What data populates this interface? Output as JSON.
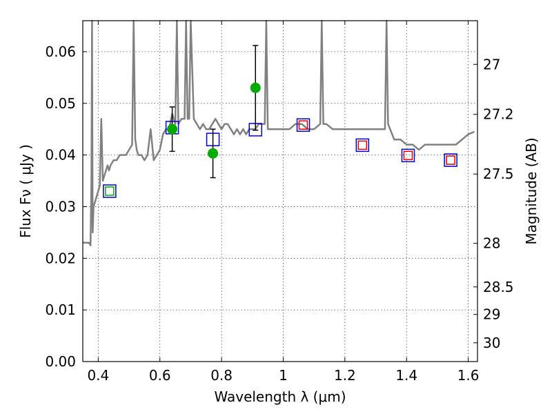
{
  "chart_data": {
    "type": "scatter",
    "xlabel": "Wavelength  λ (μm)",
    "ylabel": "Flux  Fν  ( μJy )",
    "y2label": "Magnitude (AB)",
    "xlim": [
      0.35,
      1.63
    ],
    "ylim": [
      0.0,
      0.066
    ],
    "x_ticks": [
      {
        "v": 0.4,
        "label": "0.4"
      },
      {
        "v": 0.6,
        "label": "0.6"
      },
      {
        "v": 0.8,
        "label": "0.8"
      },
      {
        "v": 1.0,
        "label": "1"
      },
      {
        "v": 1.2,
        "label": "1.2"
      },
      {
        "v": 1.4,
        "label": "1.4"
      },
      {
        "v": 1.6,
        "label": "1.6"
      }
    ],
    "y_ticks": [
      {
        "v": 0.0,
        "label": "0.00"
      },
      {
        "v": 0.01,
        "label": "0.01"
      },
      {
        "v": 0.02,
        "label": "0.02"
      },
      {
        "v": 0.03,
        "label": "0.03"
      },
      {
        "v": 0.04,
        "label": "0.04"
      },
      {
        "v": 0.05,
        "label": "0.05"
      },
      {
        "v": 0.06,
        "label": "0.06"
      }
    ],
    "y2_ticks": [
      {
        "mag": 27,
        "label": "27"
      },
      {
        "mag": 27.2,
        "label": "27.2"
      },
      {
        "mag": 27.5,
        "label": "27.5"
      },
      {
        "mag": 28,
        "label": "28"
      },
      {
        "mag": 28.5,
        "label": "28.5"
      },
      {
        "mag": 29,
        "label": "29"
      },
      {
        "mag": 30,
        "label": "30"
      }
    ],
    "grid": true,
    "colors": {
      "spectrum": "#808080",
      "observed": "#00aa00",
      "model_box": "#0000cc",
      "upper_box_red": "#dd0000",
      "upper_box_green": "#00aa00",
      "errorbar": "#000000"
    },
    "series": [
      {
        "kind": "spectrum",
        "x": [
          0.35,
          0.37,
          0.375,
          0.378,
          0.38,
          0.382,
          0.385,
          0.39,
          0.395,
          0.4,
          0.405,
          0.41,
          0.415,
          0.42,
          0.425,
          0.43,
          0.435,
          0.44,
          0.45,
          0.46,
          0.47,
          0.48,
          0.49,
          0.5,
          0.51,
          0.515,
          0.52,
          0.525,
          0.53,
          0.54,
          0.55,
          0.56,
          0.57,
          0.58,
          0.59,
          0.6,
          0.61,
          0.62,
          0.63,
          0.64,
          0.65,
          0.655,
          0.66,
          0.67,
          0.68,
          0.685,
          0.69,
          0.695,
          0.7,
          0.71,
          0.72,
          0.73,
          0.74,
          0.75,
          0.76,
          0.77,
          0.78,
          0.79,
          0.8,
          0.81,
          0.82,
          0.83,
          0.84,
          0.85,
          0.86,
          0.87,
          0.88,
          0.89,
          0.9,
          0.91,
          0.92,
          0.93,
          0.94,
          0.945,
          0.95,
          0.96,
          0.98,
          1.0,
          1.02,
          1.04,
          1.06,
          1.08,
          1.1,
          1.12,
          1.125,
          1.13,
          1.14,
          1.16,
          1.18,
          1.2,
          1.22,
          1.24,
          1.26,
          1.28,
          1.3,
          1.32,
          1.33,
          1.335,
          1.34,
          1.36,
          1.38,
          1.4,
          1.42,
          1.44,
          1.46,
          1.48,
          1.5,
          1.52,
          1.54,
          1.56,
          1.58,
          1.6,
          1.62
        ],
        "y": [
          0.023,
          0.023,
          0.0225,
          0.035,
          0.066,
          0.025,
          0.03,
          0.031,
          0.032,
          0.033,
          0.034,
          0.047,
          0.035,
          0.036,
          0.037,
          0.038,
          0.037,
          0.038,
          0.039,
          0.039,
          0.04,
          0.04,
          0.04,
          0.041,
          0.042,
          0.066,
          0.043,
          0.041,
          0.04,
          0.04,
          0.039,
          0.04,
          0.045,
          0.039,
          0.04,
          0.041,
          0.044,
          0.045,
          0.045,
          0.048,
          0.046,
          0.066,
          0.046,
          0.047,
          0.047,
          0.066,
          0.047,
          0.047,
          0.066,
          0.047,
          0.046,
          0.045,
          0.046,
          0.045,
          0.045,
          0.046,
          0.047,
          0.046,
          0.045,
          0.046,
          0.046,
          0.045,
          0.044,
          0.045,
          0.044,
          0.045,
          0.044,
          0.045,
          0.045,
          0.045,
          0.046,
          0.046,
          0.046,
          0.066,
          0.045,
          0.045,
          0.045,
          0.045,
          0.045,
          0.046,
          0.046,
          0.045,
          0.045,
          0.046,
          0.066,
          0.046,
          0.046,
          0.045,
          0.045,
          0.045,
          0.045,
          0.045,
          0.045,
          0.045,
          0.045,
          0.045,
          0.045,
          0.066,
          0.046,
          0.043,
          0.043,
          0.042,
          0.042,
          0.041,
          0.042,
          0.042,
          0.042,
          0.042,
          0.042,
          0.042,
          0.043,
          0.044,
          0.0445
        ]
      },
      {
        "kind": "observed",
        "points": [
          {
            "x": 0.64,
            "y": 0.045,
            "err": 0.0043
          },
          {
            "x": 0.772,
            "y": 0.0403,
            "err": 0.0047
          },
          {
            "x": 0.91,
            "y": 0.053,
            "err": 0.0082
          }
        ]
      },
      {
        "kind": "model_boxes",
        "points": [
          {
            "x": 0.437,
            "y": 0.033,
            "inner": "green"
          },
          {
            "x": 0.64,
            "y": 0.0453,
            "inner": "none"
          },
          {
            "x": 0.772,
            "y": 0.043,
            "inner": "none"
          },
          {
            "x": 0.91,
            "y": 0.0449,
            "inner": "none"
          },
          {
            "x": 1.065,
            "y": 0.0458,
            "inner": "red"
          },
          {
            "x": 1.257,
            "y": 0.0419,
            "inner": "red"
          },
          {
            "x": 1.405,
            "y": 0.0399,
            "inner": "red"
          },
          {
            "x": 1.543,
            "y": 0.039,
            "inner": "red"
          }
        ]
      }
    ]
  }
}
